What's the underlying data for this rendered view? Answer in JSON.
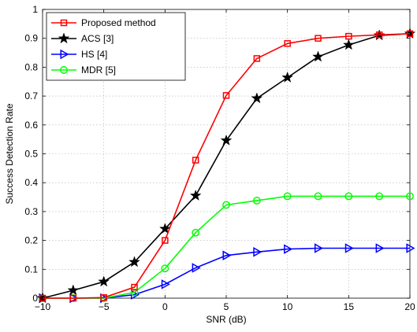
{
  "chart_data": {
    "type": "line",
    "title": "",
    "xlabel": "SNR (dB)",
    "ylabel": "Success Detection Rate",
    "xlim": [
      -10,
      20
    ],
    "ylim": [
      0,
      1
    ],
    "xticks": [
      -10,
      -5,
      0,
      5,
      10,
      15,
      20
    ],
    "yticks": [
      0,
      0.1,
      0.2,
      0.3,
      0.4,
      0.5,
      0.6,
      0.7,
      0.8,
      0.9,
      1
    ],
    "xtick_labels": [
      "−10",
      "−5",
      "0",
      "5",
      "10",
      "15",
      "20"
    ],
    "ytick_labels": [
      "0",
      "0.1",
      "0.2",
      "0.3",
      "0.4",
      "0.5",
      "0.6",
      "0.7",
      "0.8",
      "0.9",
      "1"
    ],
    "grid": true,
    "legend_position": "top-left",
    "series": [
      {
        "name": "Proposed method",
        "color": "#ff0000",
        "marker": "square",
        "x": [
          -10,
          -7.5,
          -5,
          -2.5,
          0,
          2.5,
          5,
          7.5,
          10,
          12.5,
          15,
          17.5,
          20
        ],
        "y": [
          0,
          0,
          0.002,
          0.038,
          0.2,
          0.478,
          0.702,
          0.83,
          0.882,
          0.9,
          0.907,
          0.912,
          0.916
        ]
      },
      {
        "name": "ACS [3]",
        "color": "#000000",
        "marker": "star",
        "x": [
          -10,
          -7.5,
          -5,
          -2.5,
          0,
          2.5,
          5,
          7.5,
          10,
          12.5,
          15,
          17.5,
          20
        ],
        "y": [
          0,
          0.027,
          0.057,
          0.125,
          0.24,
          0.355,
          0.546,
          0.692,
          0.764,
          0.836,
          0.877,
          0.91,
          0.916
        ]
      },
      {
        "name": "HS [4]",
        "color": "#0000ff",
        "marker": "triangle-right",
        "x": [
          -10,
          -7.5,
          -5,
          -2.5,
          0,
          2.5,
          5,
          7.5,
          10,
          12.5,
          15,
          17.5,
          20
        ],
        "y": [
          0,
          0,
          0,
          0.012,
          0.048,
          0.105,
          0.148,
          0.16,
          0.17,
          0.173,
          0.173,
          0.173,
          0.173
        ]
      },
      {
        "name": "MDR [5]",
        "color": "#00ff00",
        "marker": "circle",
        "x": [
          -10,
          -7.5,
          -5,
          -2.5,
          0,
          2.5,
          5,
          7.5,
          10,
          12.5,
          15,
          17.5,
          20
        ],
        "y": [
          0,
          0,
          0,
          0.02,
          0.103,
          0.227,
          0.323,
          0.338,
          0.353,
          0.353,
          0.353,
          0.353,
          0.353
        ]
      }
    ]
  }
}
